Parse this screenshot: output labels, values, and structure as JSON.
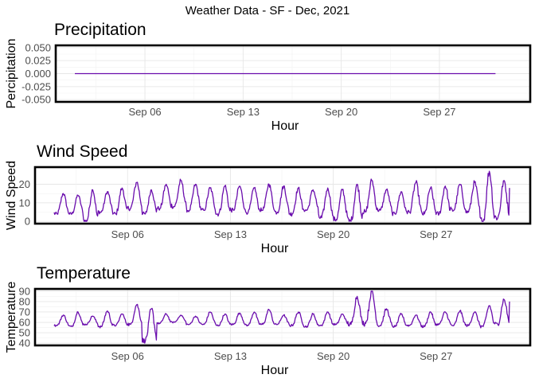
{
  "suptitle": "Weather Data - SF - Dec, 2021",
  "chart_data": [
    {
      "type": "line",
      "title": "Precipitation",
      "xlabel": "Hour",
      "ylabel": "Percipitation",
      "x_start": "2021-09-01",
      "x_end": "2021-10-02",
      "xticks": [
        "Sep 06",
        "Sep 13",
        "Sep 20",
        "Sep 27"
      ],
      "yticks": [
        "0.050",
        "0.025",
        "0.000",
        "-0.025",
        "-0.050"
      ],
      "ylim": [
        -0.05,
        0.05
      ],
      "grid": true,
      "color": "#6a0dad",
      "series": [
        {
          "x": [
            "2021-09-01",
            "2021-09-05",
            "2021-09-09",
            "2021-09-13",
            "2021-09-17",
            "2021-09-21",
            "2021-09-25",
            "2021-09-29",
            "2021-10-01"
          ],
          "values": [
            0,
            0,
            0,
            0,
            0,
            0,
            0,
            0,
            0
          ]
        }
      ]
    },
    {
      "type": "line",
      "title": "Wind Speed",
      "xlabel": "Hour",
      "ylabel": "Wind Speed",
      "x_start": "2021-09-01",
      "x_end": "2021-10-02",
      "xticks": [
        "Sep 06",
        "Sep 13",
        "Sep 20",
        "Sep 27"
      ],
      "yticks": [
        "20",
        "10",
        "0"
      ],
      "ylim": [
        0,
        28
      ],
      "grid": true,
      "color": "#6a0dad",
      "daily_profile": {
        "period_days": 1,
        "x": [
          "2021-09-01",
          "2021-09-02",
          "2021-09-03",
          "2021-09-04",
          "2021-09-05",
          "2021-09-06",
          "2021-09-07",
          "2021-09-08",
          "2021-09-09",
          "2021-09-10",
          "2021-09-11",
          "2021-09-12",
          "2021-09-13",
          "2021-09-14",
          "2021-09-15",
          "2021-09-16",
          "2021-09-17",
          "2021-09-18",
          "2021-09-19",
          "2021-09-20",
          "2021-09-21",
          "2021-09-22",
          "2021-09-23",
          "2021-09-24",
          "2021-09-25",
          "2021-09-26",
          "2021-09-27",
          "2021-09-28",
          "2021-09-29",
          "2021-09-30",
          "2021-10-01"
        ],
        "daily_max": [
          15,
          14,
          17,
          16,
          18,
          21,
          17,
          20,
          22,
          20,
          18,
          19,
          19,
          18,
          20,
          19,
          18,
          17,
          18,
          17,
          20,
          22,
          17,
          16,
          21,
          18,
          19,
          20,
          21,
          27,
          22
        ],
        "daily_min": [
          4,
          4,
          0,
          5,
          4,
          7,
          4,
          7,
          8,
          6,
          6,
          4,
          6,
          5,
          6,
          5,
          4,
          6,
          2,
          1,
          0,
          5,
          6,
          4,
          5,
          4,
          4,
          6,
          5,
          0,
          2
        ],
        "end_value": 18
      }
    },
    {
      "type": "line",
      "title": "Temperature",
      "xlabel": "Hour",
      "ylabel": "Temperature",
      "x_start": "2021-09-01",
      "x_end": "2021-10-02",
      "xticks": [
        "Sep 06",
        "Sep 13",
        "Sep 20",
        "Sep 27"
      ],
      "yticks": [
        "90",
        "80",
        "70",
        "60",
        "50",
        "40"
      ],
      "ylim": [
        40,
        90
      ],
      "grid": true,
      "color": "#6a0dad",
      "daily_profile": {
        "period_days": 1,
        "x": [
          "2021-09-01",
          "2021-09-02",
          "2021-09-03",
          "2021-09-04",
          "2021-09-05",
          "2021-09-06",
          "2021-09-07",
          "2021-09-08",
          "2021-09-09",
          "2021-09-10",
          "2021-09-11",
          "2021-09-12",
          "2021-09-13",
          "2021-09-14",
          "2021-09-15",
          "2021-09-16",
          "2021-09-17",
          "2021-09-18",
          "2021-09-19",
          "2021-09-20",
          "2021-09-21",
          "2021-09-22",
          "2021-09-23",
          "2021-09-24",
          "2021-09-25",
          "2021-09-26",
          "2021-09-27",
          "2021-09-28",
          "2021-09-29",
          "2021-09-30",
          "2021-10-01"
        ],
        "daily_max": [
          67,
          70,
          66,
          71,
          68,
          77,
          73,
          68,
          67,
          66,
          70,
          68,
          69,
          70,
          72,
          67,
          70,
          68,
          70,
          68,
          85,
          90,
          73,
          68,
          67,
          70,
          70,
          71,
          70,
          76,
          82
        ],
        "daily_min": [
          57,
          56,
          58,
          56,
          57,
          58,
          42,
          59,
          60,
          58,
          58,
          57,
          58,
          57,
          58,
          58,
          57,
          56,
          57,
          58,
          58,
          59,
          57,
          56,
          57,
          56,
          58,
          57,
          57,
          56,
          58
        ],
        "end_value": 80
      }
    }
  ]
}
